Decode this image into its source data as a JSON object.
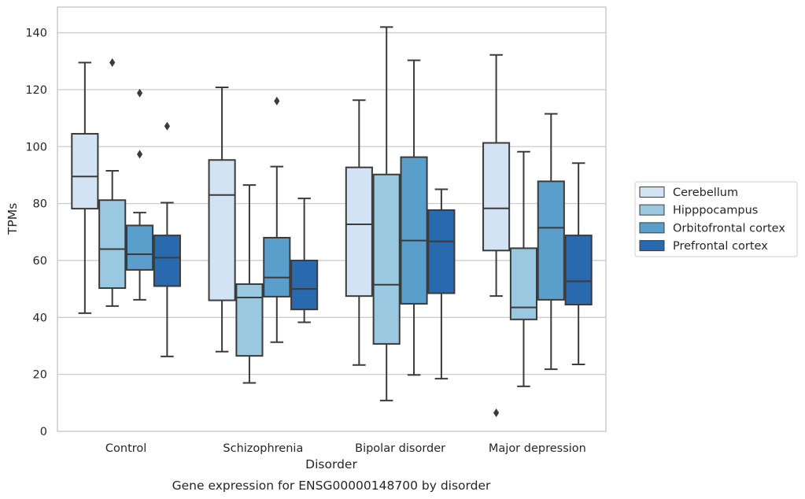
{
  "chart_data": {
    "type": "box",
    "title": "",
    "caption": "Gene expression for ENSG00000148700 by disorder",
    "xlabel": "Disorder",
    "ylabel": "TPMs",
    "ylim": [
      0,
      149
    ],
    "yticks": [
      0,
      20,
      40,
      60,
      80,
      100,
      120,
      140
    ],
    "grid": "horizontal",
    "legend_position": "right",
    "categories": [
      "Control",
      "Schizophrenia",
      "Bipolar disorder",
      "Major depression"
    ],
    "series": [
      {
        "name": "Cerebellum",
        "color": "#d2e3f3",
        "boxes": [
          {
            "whisker_low": 41.5,
            "q1": 78.2,
            "median": 89.5,
            "q3": 104.5,
            "whisker_high": 129.5,
            "outliers": []
          },
          {
            "whisker_low": 28.0,
            "q1": 46.0,
            "median": 83.0,
            "q3": 95.3,
            "whisker_high": 120.8,
            "outliers": []
          },
          {
            "whisker_low": 23.3,
            "q1": 47.5,
            "median": 72.7,
            "q3": 92.7,
            "whisker_high": 116.3,
            "outliers": []
          },
          {
            "whisker_low": 47.5,
            "q1": 63.5,
            "median": 78.3,
            "q3": 101.3,
            "whisker_high": 132.2,
            "outliers": [
              6.5
            ]
          }
        ]
      },
      {
        "name": "Hipppocampus",
        "color": "#9ac8e0",
        "boxes": [
          {
            "whisker_low": 44.0,
            "q1": 50.3,
            "median": 64.0,
            "q3": 81.2,
            "whisker_high": 91.5,
            "outliers": [
              129.5
            ]
          },
          {
            "whisker_low": 17.0,
            "q1": 26.5,
            "median": 47.0,
            "q3": 51.7,
            "whisker_high": 86.5,
            "outliers": []
          },
          {
            "whisker_low": 10.8,
            "q1": 30.7,
            "median": 51.5,
            "q3": 90.2,
            "whisker_high": 142.0,
            "outliers": []
          },
          {
            "whisker_low": 15.8,
            "q1": 39.3,
            "median": 43.5,
            "q3": 64.3,
            "whisker_high": 98.2,
            "outliers": []
          }
        ]
      },
      {
        "name": "Orbitofrontal cortex",
        "color": "#5a9fcc",
        "boxes": [
          {
            "whisker_low": 46.2,
            "q1": 56.7,
            "median": 62.2,
            "q3": 72.3,
            "whisker_high": 76.8,
            "outliers": [
              97.3,
              118.8
            ]
          },
          {
            "whisker_low": 31.3,
            "q1": 47.3,
            "median": 54.0,
            "q3": 68.0,
            "whisker_high": 93.0,
            "outliers": [
              116.0
            ]
          },
          {
            "whisker_low": 19.8,
            "q1": 44.8,
            "median": 67.0,
            "q3": 96.3,
            "whisker_high": 130.3,
            "outliers": []
          },
          {
            "whisker_low": 21.8,
            "q1": 46.2,
            "median": 71.5,
            "q3": 87.8,
            "whisker_high": 111.5,
            "outliers": []
          }
        ]
      },
      {
        "name": "Prefrontal cortex",
        "color": "#2969ad",
        "boxes": [
          {
            "whisker_low": 26.3,
            "q1": 51.0,
            "median": 61.0,
            "q3": 68.8,
            "whisker_high": 80.3,
            "outliers": [
              107.2
            ]
          },
          {
            "whisker_low": 38.3,
            "q1": 42.8,
            "median": 50.0,
            "q3": 60.0,
            "whisker_high": 81.8,
            "outliers": []
          },
          {
            "whisker_low": 18.5,
            "q1": 48.5,
            "median": 66.7,
            "q3": 77.7,
            "whisker_high": 85.0,
            "outliers": []
          },
          {
            "whisker_low": 23.5,
            "q1": 44.5,
            "median": 52.7,
            "q3": 68.8,
            "whisker_high": 94.2,
            "outliers": []
          }
        ]
      }
    ],
    "colors": {
      "box_edge": "#3b3b3b",
      "grid": "#cccccc",
      "frame": "#cccccc",
      "text": "#262626"
    }
  }
}
